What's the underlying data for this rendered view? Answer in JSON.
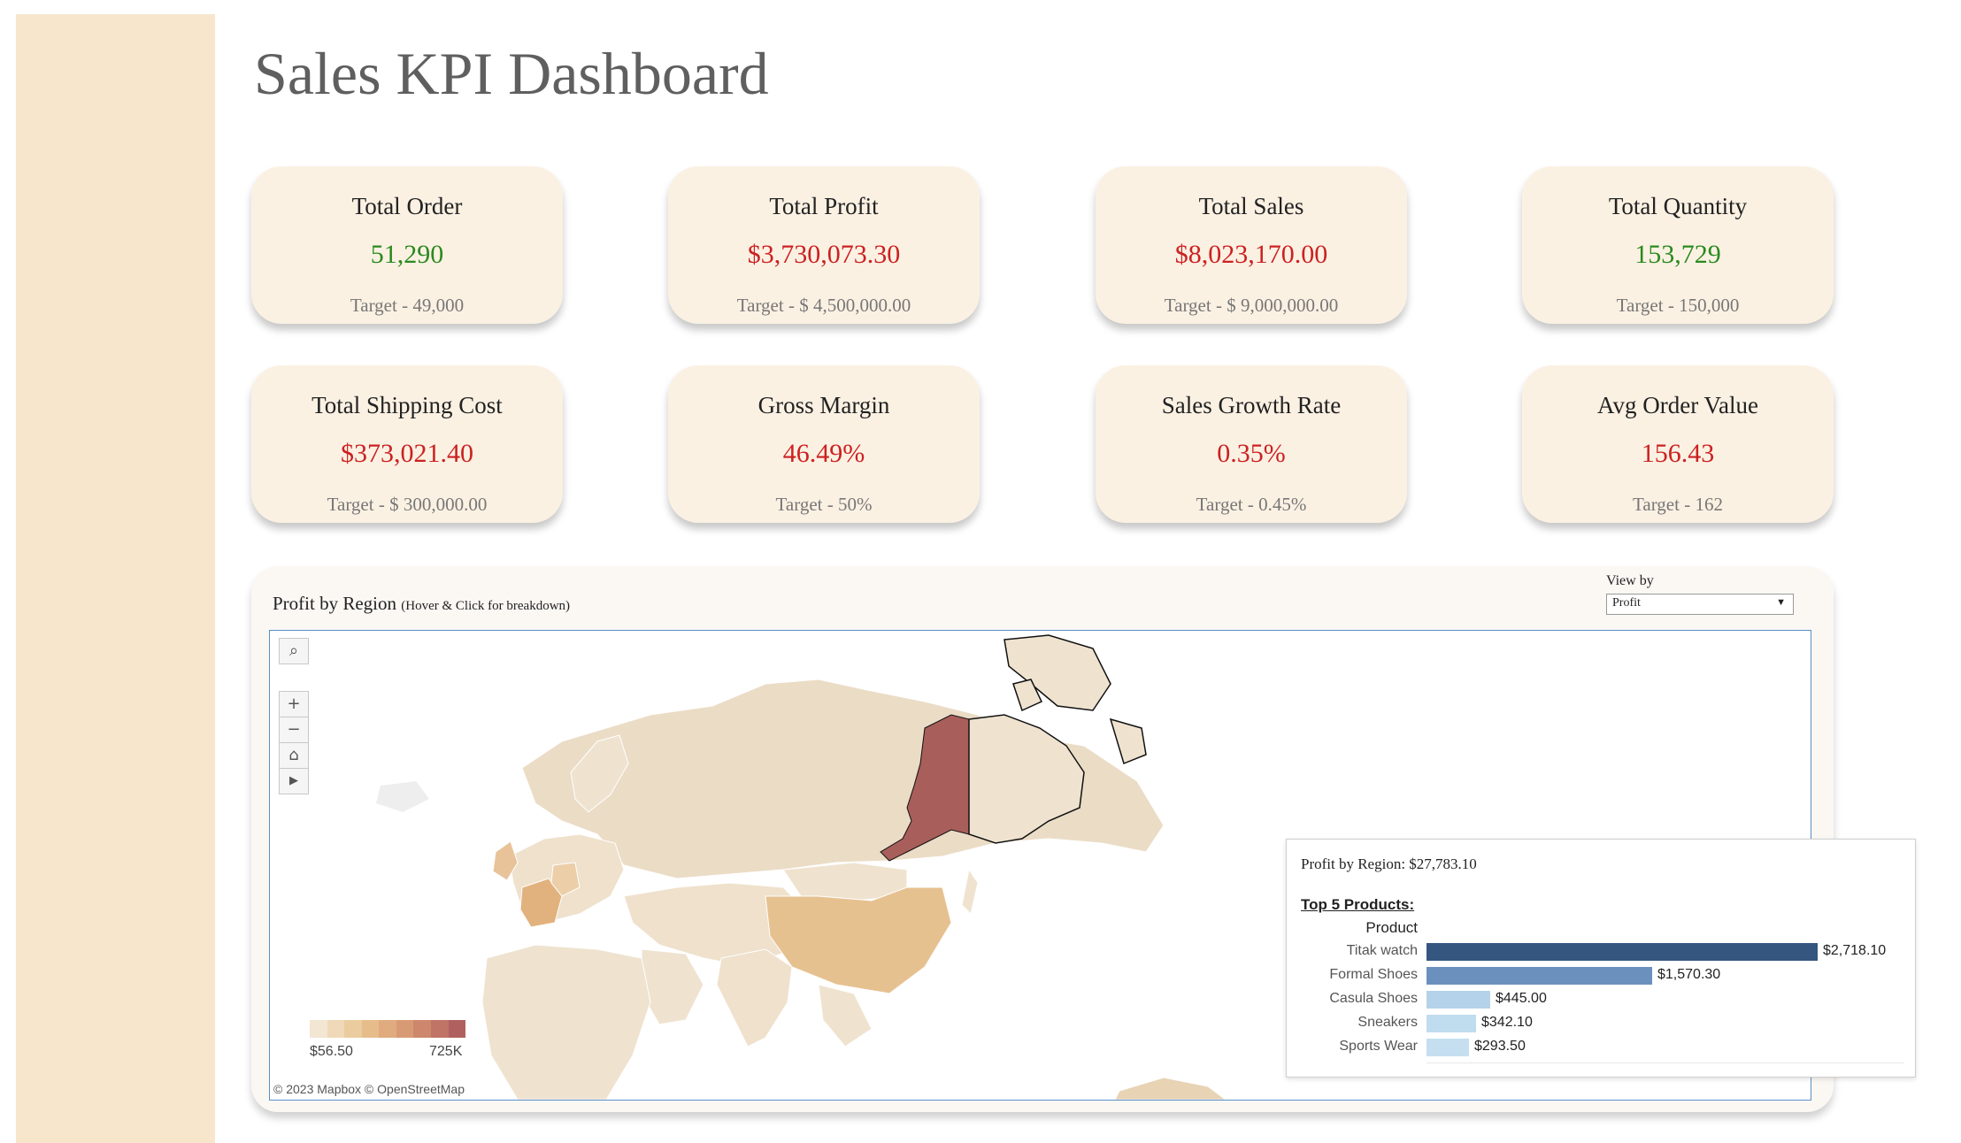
{
  "page": {
    "title": "Sales KPI Dashboard"
  },
  "kpis": [
    {
      "title": "Total Order",
      "value": "51,290",
      "target": "Target - 49,000",
      "status": "good"
    },
    {
      "title": "Total Profit",
      "value": "$3,730,073.30",
      "target": "Target - $ 4,500,000.00",
      "status": "bad"
    },
    {
      "title": "Total Sales",
      "value": "$8,023,170.00",
      "target": "Target - $ 9,000,000.00",
      "status": "bad"
    },
    {
      "title": "Total Quantity",
      "value": "153,729",
      "target": "Target - 150,000",
      "status": "good"
    },
    {
      "title": "Total Shipping Cost",
      "value": "$373,021.40",
      "target": "Target - $ 300,000.00",
      "status": "bad"
    },
    {
      "title": "Gross Margin",
      "value": "46.49%",
      "target": "Target - 50%",
      "status": "bad"
    },
    {
      "title": "Sales Growth Rate",
      "value": "0.35%",
      "target": "Target - 0.45%",
      "status": "bad"
    },
    {
      "title": "Avg Order Value",
      "value": "156.43",
      "target": "Target - 162",
      "status": "bad"
    }
  ],
  "map": {
    "title": "Profit by Region",
    "hint": "(Hover & Click for breakdown)",
    "view_by_label": "View by",
    "view_by_value": "Profit",
    "legend_min": "$56.50",
    "legend_max": "725K",
    "attribution": "© 2023 Mapbox  © OpenStreetMap",
    "legend_colors": [
      "#f3e6d2",
      "#efd9b8",
      "#ebcc9f",
      "#e6bd8a",
      "#e0ab7f",
      "#d89a75",
      "#cd876d",
      "#bf7466",
      "#b0615f"
    ],
    "tools": {
      "search_icon": "⌕",
      "zoom_in_icon": "+",
      "zoom_out_icon": "−",
      "home_icon": "⌂",
      "pan_icon": "▶"
    }
  },
  "tooltip": {
    "header": "Profit by Region: $27,783.10",
    "subheader": "Top 5 Products:",
    "column_label": "Product",
    "products": [
      {
        "name": "Titak watch",
        "value": 2718.1,
        "label": "$2,718.10",
        "color": "#34567f"
      },
      {
        "name": "Formal Shoes",
        "value": 1570.3,
        "label": "$1,570.30",
        "color": "#6b90bd"
      },
      {
        "name": "Casula Shoes",
        "value": 445.0,
        "label": "$445.00",
        "color": "#b4d3ea"
      },
      {
        "name": "Sneakers",
        "value": 342.1,
        "label": "$342.10",
        "color": "#c0dcef"
      },
      {
        "name": "Sports Wear",
        "value": 293.5,
        "label": "$293.50",
        "color": "#c5dff1"
      }
    ]
  }
}
